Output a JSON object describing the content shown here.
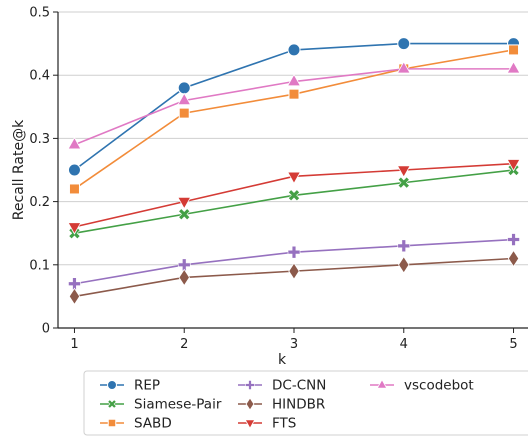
{
  "chart_data": {
    "type": "line",
    "xlabel": "k",
    "ylabel": "Recall Rate@k",
    "x": [
      1,
      2,
      3,
      4,
      5
    ],
    "xticks": [
      "1",
      "2",
      "3",
      "4",
      "5"
    ],
    "xlim": [
      0.85,
      5.15
    ],
    "ylim": [
      0,
      0.5
    ],
    "yticks": [
      "0",
      "0.1",
      "0.2",
      "0.3",
      "0.4",
      "0.5"
    ],
    "grid": "horizontal",
    "legend_position": "bottom",
    "series": [
      {
        "name": "REP",
        "values": [
          0.25,
          0.38,
          0.44,
          0.45,
          0.45
        ],
        "color": "#2f74b0",
        "marker": "circle"
      },
      {
        "name": "Siamese-Pair",
        "values": [
          0.15,
          0.18,
          0.21,
          0.23,
          0.25
        ],
        "color": "#44a046",
        "marker": "x"
      },
      {
        "name": "SABD",
        "values": [
          0.22,
          0.34,
          0.37,
          0.41,
          0.44
        ],
        "color": "#f28c3a",
        "marker": "square"
      },
      {
        "name": "DC-CNN",
        "values": [
          0.07,
          0.1,
          0.12,
          0.13,
          0.14
        ],
        "color": "#9671bf",
        "marker": "plus"
      },
      {
        "name": "HINDBR",
        "values": [
          0.05,
          0.08,
          0.09,
          0.1,
          0.11
        ],
        "color": "#8c5a4b",
        "marker": "diamond"
      },
      {
        "name": "FTS",
        "values": [
          0.16,
          0.2,
          0.24,
          0.25,
          0.26
        ],
        "color": "#d43b35",
        "marker": "triangle-down"
      },
      {
        "name": "vscodebot",
        "values": [
          0.29,
          0.36,
          0.39,
          0.41,
          0.41
        ],
        "color": "#e079c4",
        "marker": "triangle-up"
      }
    ]
  }
}
